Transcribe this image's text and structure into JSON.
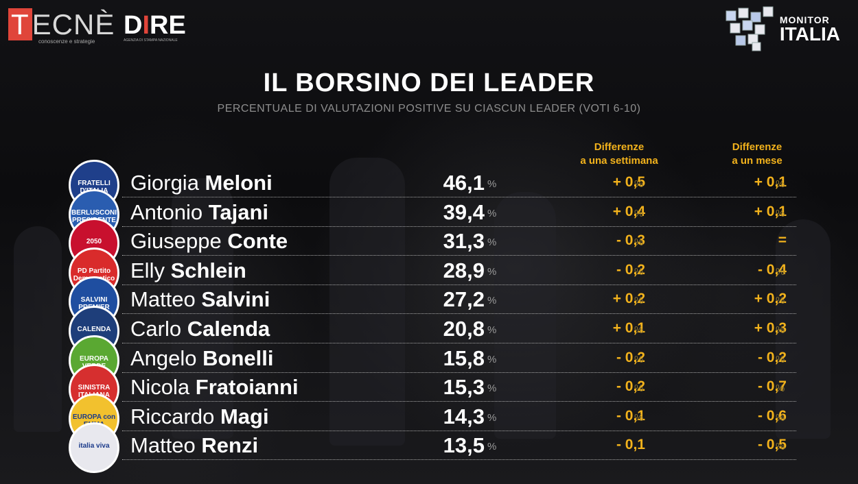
{
  "header": {
    "tecne_logo": "TECNÈ",
    "tecne_tagline": "conoscenze e strategie",
    "dire_logo": "DIRE",
    "dire_tagline": "AGENZIA DI STAMPA NAZIONALE",
    "monitor_line1": "MONITOR",
    "monitor_line2": "ITALIA"
  },
  "chart_data": {
    "type": "table",
    "title": "IL BORSINO DEI LEADER",
    "subtitle": "PERCENTUALE DI VALUTAZIONI POSITIVE SU CIASCUN LEADER (VOTI 6-10)",
    "columns": {
      "week": "Differenze\na una settimana",
      "month": "Differenze\na un mese"
    },
    "unit": "%",
    "rows": [
      {
        "first": "Giorgia",
        "last": "Meloni",
        "value": "46,1",
        "week": "+ 0,5",
        "week_pct": "%",
        "month": "+ 0,1",
        "month_pct": "%",
        "logo": "FRATELLI D'ITALIA GIORGIA MELONI",
        "logo_color": "#1f3f8a"
      },
      {
        "first": "Antonio",
        "last": "Tajani",
        "value": "39,4",
        "week": "+ 0,4",
        "week_pct": "%",
        "month": "+ 0,1",
        "month_pct": "%",
        "logo": "BERLUSCONI PRESIDENTE",
        "logo_color": "#2a5db0"
      },
      {
        "first": "Giuseppe",
        "last": "Conte",
        "value": "31,3",
        "week": "- 0,3",
        "week_pct": "%",
        "month": "=",
        "month_pct": "",
        "logo": "2050",
        "logo_color": "#c8102e"
      },
      {
        "first": "Elly",
        "last": "Schlein",
        "value": "28,9",
        "week": "- 0,2",
        "week_pct": "%",
        "month": "- 0,4",
        "month_pct": "%",
        "logo": "PD Partito Democratico",
        "logo_color": "#d92b2b"
      },
      {
        "first": "Matteo",
        "last": "Salvini",
        "value": "27,2",
        "week": "+ 0,2",
        "week_pct": "%",
        "month": "+ 0,2",
        "month_pct": "%",
        "logo": "SALVINI PREMIER",
        "logo_color": "#1f4ea0"
      },
      {
        "first": "Carlo",
        "last": "Calenda",
        "value": "20,8",
        "week": "+ 0,1",
        "week_pct": "%",
        "month": "+ 0,3",
        "month_pct": "%",
        "logo": "CALENDA",
        "logo_color": "#1e3e7a"
      },
      {
        "first": "Angelo",
        "last": "Bonelli",
        "value": "15,8",
        "week": "- 0,2",
        "week_pct": "%",
        "month": "- 0,2",
        "month_pct": "%",
        "logo": "EUROPA VERDE",
        "logo_color": "#5aa832"
      },
      {
        "first": "Nicola",
        "last": "Fratoianni",
        "value": "15,3",
        "week": "- 0,2",
        "week_pct": "%",
        "month": "- 0,7",
        "month_pct": "%",
        "logo": "SINISTRA ITALIANA",
        "logo_color": "#d62f2f"
      },
      {
        "first": "Riccardo",
        "last": "Magi",
        "value": "14,3",
        "week": "- 0,1",
        "week_pct": "%",
        "month": "- 0,6",
        "month_pct": "%",
        "logo": "EUROPA con EMMA BONINO",
        "logo_color": "#f2c12e"
      },
      {
        "first": "Matteo",
        "last": "Renzi",
        "value": "13,5",
        "week": "- 0,1",
        "week_pct": "",
        "month": "- 0,5",
        "month_pct": "%",
        "logo": "italia viva",
        "logo_color": "#e8e8ee"
      }
    ]
  }
}
